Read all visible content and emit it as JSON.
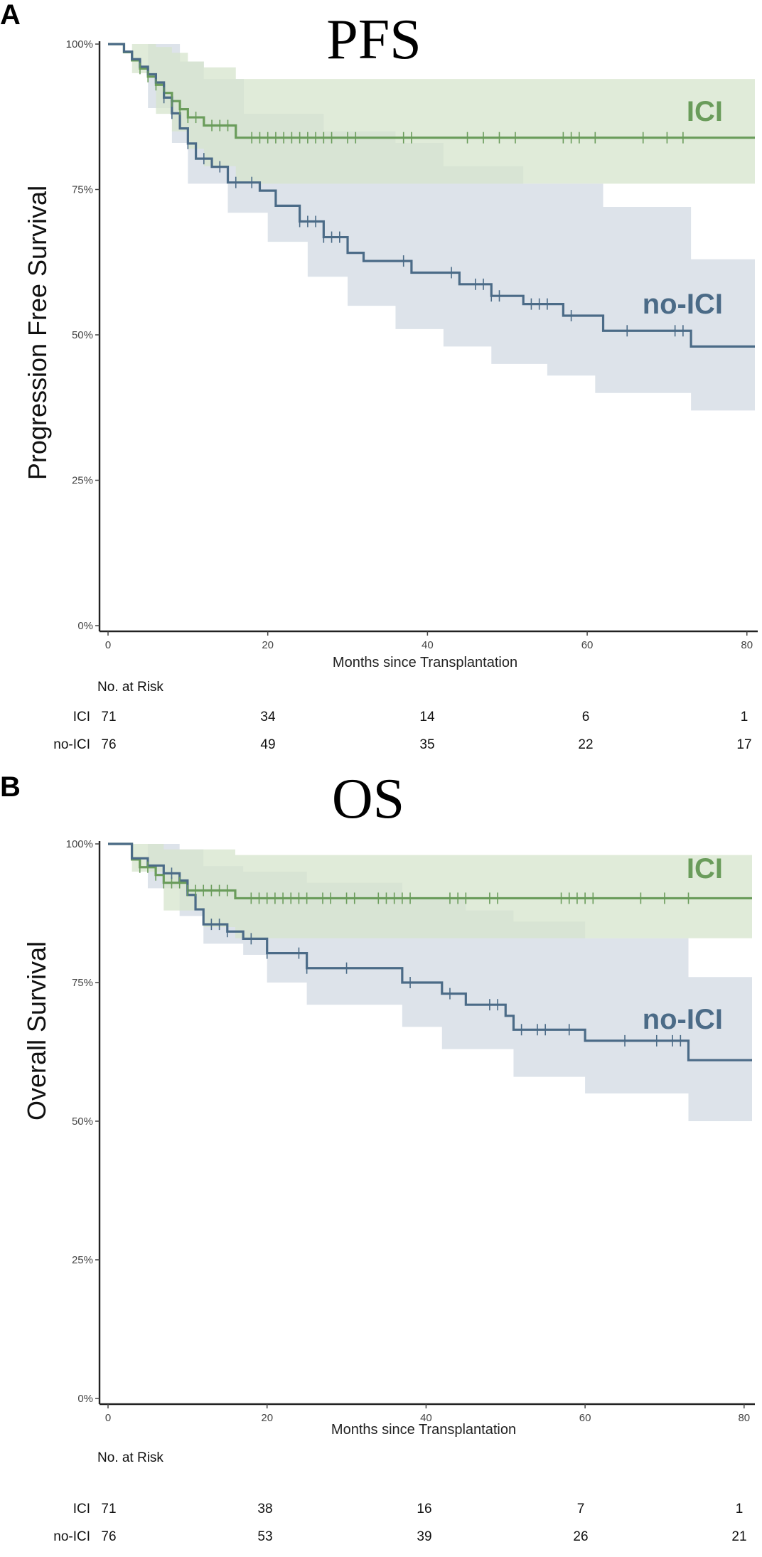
{
  "chart_data": [
    {
      "type": "line",
      "panel": "A",
      "title": "PFS",
      "xlabel": "Months since Transplantation",
      "ylabel": "Progression Free Survival",
      "xlim": [
        0,
        81
      ],
      "ylim": [
        0,
        1
      ],
      "xticks": [
        0,
        20,
        40,
        60,
        80
      ],
      "yticks": [
        {
          "v": 0,
          "label": "0%"
        },
        {
          "v": 0.25,
          "label": "25%"
        },
        {
          "v": 0.5,
          "label": "50%"
        },
        {
          "v": 0.75,
          "label": "75%"
        },
        {
          "v": 1,
          "label": "100%"
        }
      ],
      "series": [
        {
          "name": "ICI",
          "label": "ICI",
          "color": "#6a9c5b",
          "band_color": "#d5e4cc",
          "steps": [
            [
              0,
              1
            ],
            [
              2,
              0.986
            ],
            [
              3,
              0.972
            ],
            [
              4,
              0.958
            ],
            [
              5,
              0.944
            ],
            [
              6,
              0.93
            ],
            [
              7,
              0.916
            ],
            [
              8,
              0.902
            ],
            [
              9,
              0.888
            ],
            [
              10,
              0.874
            ],
            [
              12,
              0.86
            ],
            [
              16,
              0.839
            ],
            [
              81,
              0.839
            ]
          ],
          "upper": [
            [
              0,
              1
            ],
            [
              3,
              1
            ],
            [
              6,
              0.995
            ],
            [
              8,
              0.985
            ],
            [
              10,
              0.97
            ],
            [
              12,
              0.96
            ],
            [
              16,
              0.94
            ],
            [
              81,
              0.94
            ]
          ],
          "lower": [
            [
              0,
              1
            ],
            [
              3,
              0.95
            ],
            [
              6,
              0.88
            ],
            [
              8,
              0.85
            ],
            [
              10,
              0.82
            ],
            [
              12,
              0.79
            ],
            [
              16,
              0.76
            ],
            [
              81,
              0.75
            ]
          ],
          "censors": [
            4,
            5,
            6,
            7,
            8,
            9,
            10,
            11,
            13,
            14,
            15,
            18,
            19,
            20,
            21,
            22,
            23,
            24,
            25,
            26,
            27,
            28,
            30,
            31,
            37,
            38,
            45,
            47,
            49,
            51,
            57,
            58,
            59,
            61,
            67,
            70,
            72
          ]
        },
        {
          "name": "no-ICI",
          "label": "no-ICI",
          "color": "#4b6b87",
          "band_color": "#dde3ea",
          "steps": [
            [
              0,
              1
            ],
            [
              2,
              0.987
            ],
            [
              3,
              0.974
            ],
            [
              4,
              0.961
            ],
            [
              5,
              0.948
            ],
            [
              6,
              0.934
            ],
            [
              7,
              0.908
            ],
            [
              8,
              0.881
            ],
            [
              9,
              0.855
            ],
            [
              10,
              0.829
            ],
            [
              11,
              0.803
            ],
            [
              13,
              0.789
            ],
            [
              15,
              0.762
            ],
            [
              19,
              0.748
            ],
            [
              21,
              0.722
            ],
            [
              24,
              0.695
            ],
            [
              27,
              0.668
            ],
            [
              30,
              0.641
            ],
            [
              32,
              0.627
            ],
            [
              38,
              0.607
            ],
            [
              44,
              0.587
            ],
            [
              48,
              0.567
            ],
            [
              52,
              0.553
            ],
            [
              57,
              0.533
            ],
            [
              62,
              0.507
            ],
            [
              73,
              0.48
            ],
            [
              81,
              0.48
            ]
          ],
          "upper": [
            [
              0,
              1
            ],
            [
              5,
              1
            ],
            [
              9,
              0.97
            ],
            [
              12,
              0.94
            ],
            [
              17,
              0.88
            ],
            [
              27,
              0.85
            ],
            [
              36,
              0.83
            ],
            [
              42,
              0.79
            ],
            [
              52,
              0.76
            ],
            [
              62,
              0.72
            ],
            [
              73,
              0.63
            ],
            [
              81,
              0.63
            ]
          ],
          "lower": [
            [
              0,
              1
            ],
            [
              5,
              0.89
            ],
            [
              8,
              0.83
            ],
            [
              10,
              0.76
            ],
            [
              15,
              0.71
            ],
            [
              20,
              0.66
            ],
            [
              25,
              0.6
            ],
            [
              30,
              0.55
            ],
            [
              36,
              0.51
            ],
            [
              42,
              0.48
            ],
            [
              48,
              0.45
            ],
            [
              55,
              0.43
            ],
            [
              61,
              0.4
            ],
            [
              73,
              0.37
            ],
            [
              81,
              0.36
            ]
          ],
          "censors": [
            7,
            8,
            10,
            12,
            14,
            16,
            18,
            24,
            25,
            26,
            27,
            28,
            29,
            37,
            43,
            46,
            47,
            48,
            49,
            53,
            54,
            55,
            58,
            65,
            71,
            72
          ]
        }
      ],
      "risk_table": {
        "title": "No. at Risk",
        "times": [
          0,
          20,
          40,
          60,
          80
        ],
        "rows": [
          {
            "label": "ICI",
            "values": [
              "71",
              "34",
              "14",
              "6",
              "1"
            ]
          },
          {
            "label": "no-ICI",
            "values": [
              "76",
              "49",
              "35",
              "22",
              "17"
            ]
          }
        ]
      }
    },
    {
      "type": "line",
      "panel": "B",
      "title": "OS",
      "xlabel": "Months since Transplantation",
      "ylabel": "Overall Survival",
      "xlim": [
        0,
        81
      ],
      "ylim": [
        0,
        1
      ],
      "xticks": [
        0,
        20,
        40,
        60,
        80
      ],
      "yticks": [
        {
          "v": 0,
          "label": "0%"
        },
        {
          "v": 0.25,
          "label": "25%"
        },
        {
          "v": 0.5,
          "label": "50%"
        },
        {
          "v": 0.75,
          "label": "75%"
        },
        {
          "v": 1,
          "label": "100%"
        }
      ],
      "series": [
        {
          "name": "ICI",
          "label": "ICI",
          "color": "#6a9c5b",
          "band_color": "#d5e4cc",
          "steps": [
            [
              0,
              1
            ],
            [
              3,
              0.972
            ],
            [
              4,
              0.958
            ],
            [
              6,
              0.944
            ],
            [
              7,
              0.93
            ],
            [
              10,
              0.916
            ],
            [
              16,
              0.902
            ],
            [
              81,
              0.902
            ]
          ],
          "upper": [
            [
              0,
              1
            ],
            [
              3,
              1
            ],
            [
              7,
              0.99
            ],
            [
              16,
              0.98
            ],
            [
              81,
              0.98
            ]
          ],
          "lower": [
            [
              0,
              1
            ],
            [
              3,
              0.95
            ],
            [
              7,
              0.88
            ],
            [
              12,
              0.85
            ],
            [
              16,
              0.83
            ],
            [
              81,
              0.83
            ]
          ],
          "censors": [
            4,
            5,
            6,
            7,
            8,
            9,
            10,
            11,
            12,
            13,
            14,
            15,
            18,
            19,
            20,
            21,
            22,
            23,
            24,
            25,
            27,
            28,
            30,
            31,
            34,
            35,
            36,
            37,
            38,
            43,
            44,
            45,
            48,
            49,
            57,
            58,
            59,
            60,
            61,
            67,
            70,
            73
          ]
        },
        {
          "name": "no-ICI",
          "label": "no-ICI",
          "color": "#4b6b87",
          "band_color": "#dde3ea",
          "steps": [
            [
              0,
              1
            ],
            [
              3,
              0.974
            ],
            [
              5,
              0.961
            ],
            [
              7,
              0.947
            ],
            [
              9,
              0.934
            ],
            [
              10,
              0.908
            ],
            [
              11,
              0.882
            ],
            [
              12,
              0.855
            ],
            [
              15,
              0.842
            ],
            [
              17,
              0.829
            ],
            [
              20,
              0.803
            ],
            [
              25,
              0.776
            ],
            [
              37,
              0.75
            ],
            [
              42,
              0.73
            ],
            [
              45,
              0.71
            ],
            [
              50,
              0.69
            ],
            [
              51,
              0.665
            ],
            [
              60,
              0.645
            ],
            [
              73,
              0.61
            ],
            [
              81,
              0.61
            ]
          ],
          "upper": [
            [
              0,
              1
            ],
            [
              5,
              1
            ],
            [
              9,
              0.99
            ],
            [
              12,
              0.96
            ],
            [
              17,
              0.95
            ],
            [
              25,
              0.93
            ],
            [
              37,
              0.9
            ],
            [
              45,
              0.88
            ],
            [
              51,
              0.86
            ],
            [
              60,
              0.83
            ],
            [
              73,
              0.76
            ],
            [
              81,
              0.76
            ]
          ],
          "lower": [
            [
              0,
              1
            ],
            [
              5,
              0.92
            ],
            [
              9,
              0.87
            ],
            [
              12,
              0.82
            ],
            [
              17,
              0.8
            ],
            [
              20,
              0.75
            ],
            [
              25,
              0.71
            ],
            [
              37,
              0.67
            ],
            [
              42,
              0.63
            ],
            [
              51,
              0.58
            ],
            [
              60,
              0.55
            ],
            [
              73,
              0.5
            ],
            [
              81,
              0.49
            ]
          ],
          "censors": [
            8,
            13,
            14,
            15,
            18,
            20,
            24,
            25,
            30,
            38,
            43,
            48,
            49,
            52,
            54,
            55,
            58,
            65,
            69,
            71,
            72
          ]
        }
      ],
      "risk_table": {
        "title": "No. at Risk",
        "times": [
          0,
          20,
          40,
          60,
          80
        ],
        "rows": [
          {
            "label": "ICI",
            "values": [
              "71",
              "38",
              "16",
              "7",
              "1"
            ]
          },
          {
            "label": "no-ICI",
            "values": [
              "76",
              "53",
              "39",
              "26",
              "21"
            ]
          }
        ]
      }
    }
  ]
}
